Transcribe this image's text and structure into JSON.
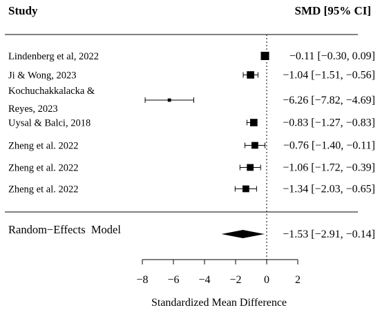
{
  "chart_data": {
    "type": "forest",
    "header": {
      "study": "Study",
      "estimate": "SMD [95% CI]"
    },
    "xlabel": "Standardized Mean Difference",
    "xlim": [
      -8,
      2
    ],
    "xticks": [
      -8,
      -6,
      -4,
      -2,
      0,
      2
    ],
    "xtick_labels": [
      "−8",
      "−6",
      "−4",
      "−2",
      "0",
      "2"
    ],
    "reference_line": 0,
    "studies": [
      {
        "label": [
          "Lindenberg et al, 2022"
        ],
        "estimate": -0.11,
        "lower": -0.3,
        "upper": 0.09,
        "text": "−0.11 [−0.30, 0.09]",
        "weight": 1.0
      },
      {
        "label": [
          "Ji & Wong, 2023"
        ],
        "estimate": -1.04,
        "lower": -1.51,
        "upper": -0.56,
        "text": "−1.04 [−1.51, −0.56]",
        "weight": 0.85
      },
      {
        "label": [
          "Kochuchakkalacka &",
          "Reyes, 2023"
        ],
        "estimate": -6.26,
        "lower": -7.82,
        "upper": -4.69,
        "text": "−6.26 [−7.82, −4.69]",
        "weight": 0.2
      },
      {
        "label": [
          "Uysal & Balci, 2018"
        ],
        "estimate": -0.83,
        "lower": -1.27,
        "upper": -0.83,
        "text": "−0.83 [−1.27, −0.83]",
        "weight": 0.85
      },
      {
        "label": [
          "Zheng et al. 2022"
        ],
        "estimate": -0.76,
        "lower": -1.4,
        "upper": -0.11,
        "text": "−0.76 [−1.40, −0.11]",
        "weight": 0.75
      },
      {
        "label": [
          "Zheng et al. 2022"
        ],
        "estimate": -1.06,
        "lower": -1.72,
        "upper": -0.39,
        "text": "−1.06 [−1.72, −0.39]",
        "weight": 0.75
      },
      {
        "label": [
          "Zheng et al. 2022"
        ],
        "estimate": -1.34,
        "lower": -2.03,
        "upper": -0.65,
        "text": "−1.34 [−2.03, −0.65]",
        "weight": 0.75
      }
    ],
    "summary": {
      "label": "Random−Effects  Model",
      "estimate": -1.53,
      "lower": -2.91,
      "upper": -0.14,
      "text": "−1.53 [−2.91, −0.14]"
    }
  }
}
